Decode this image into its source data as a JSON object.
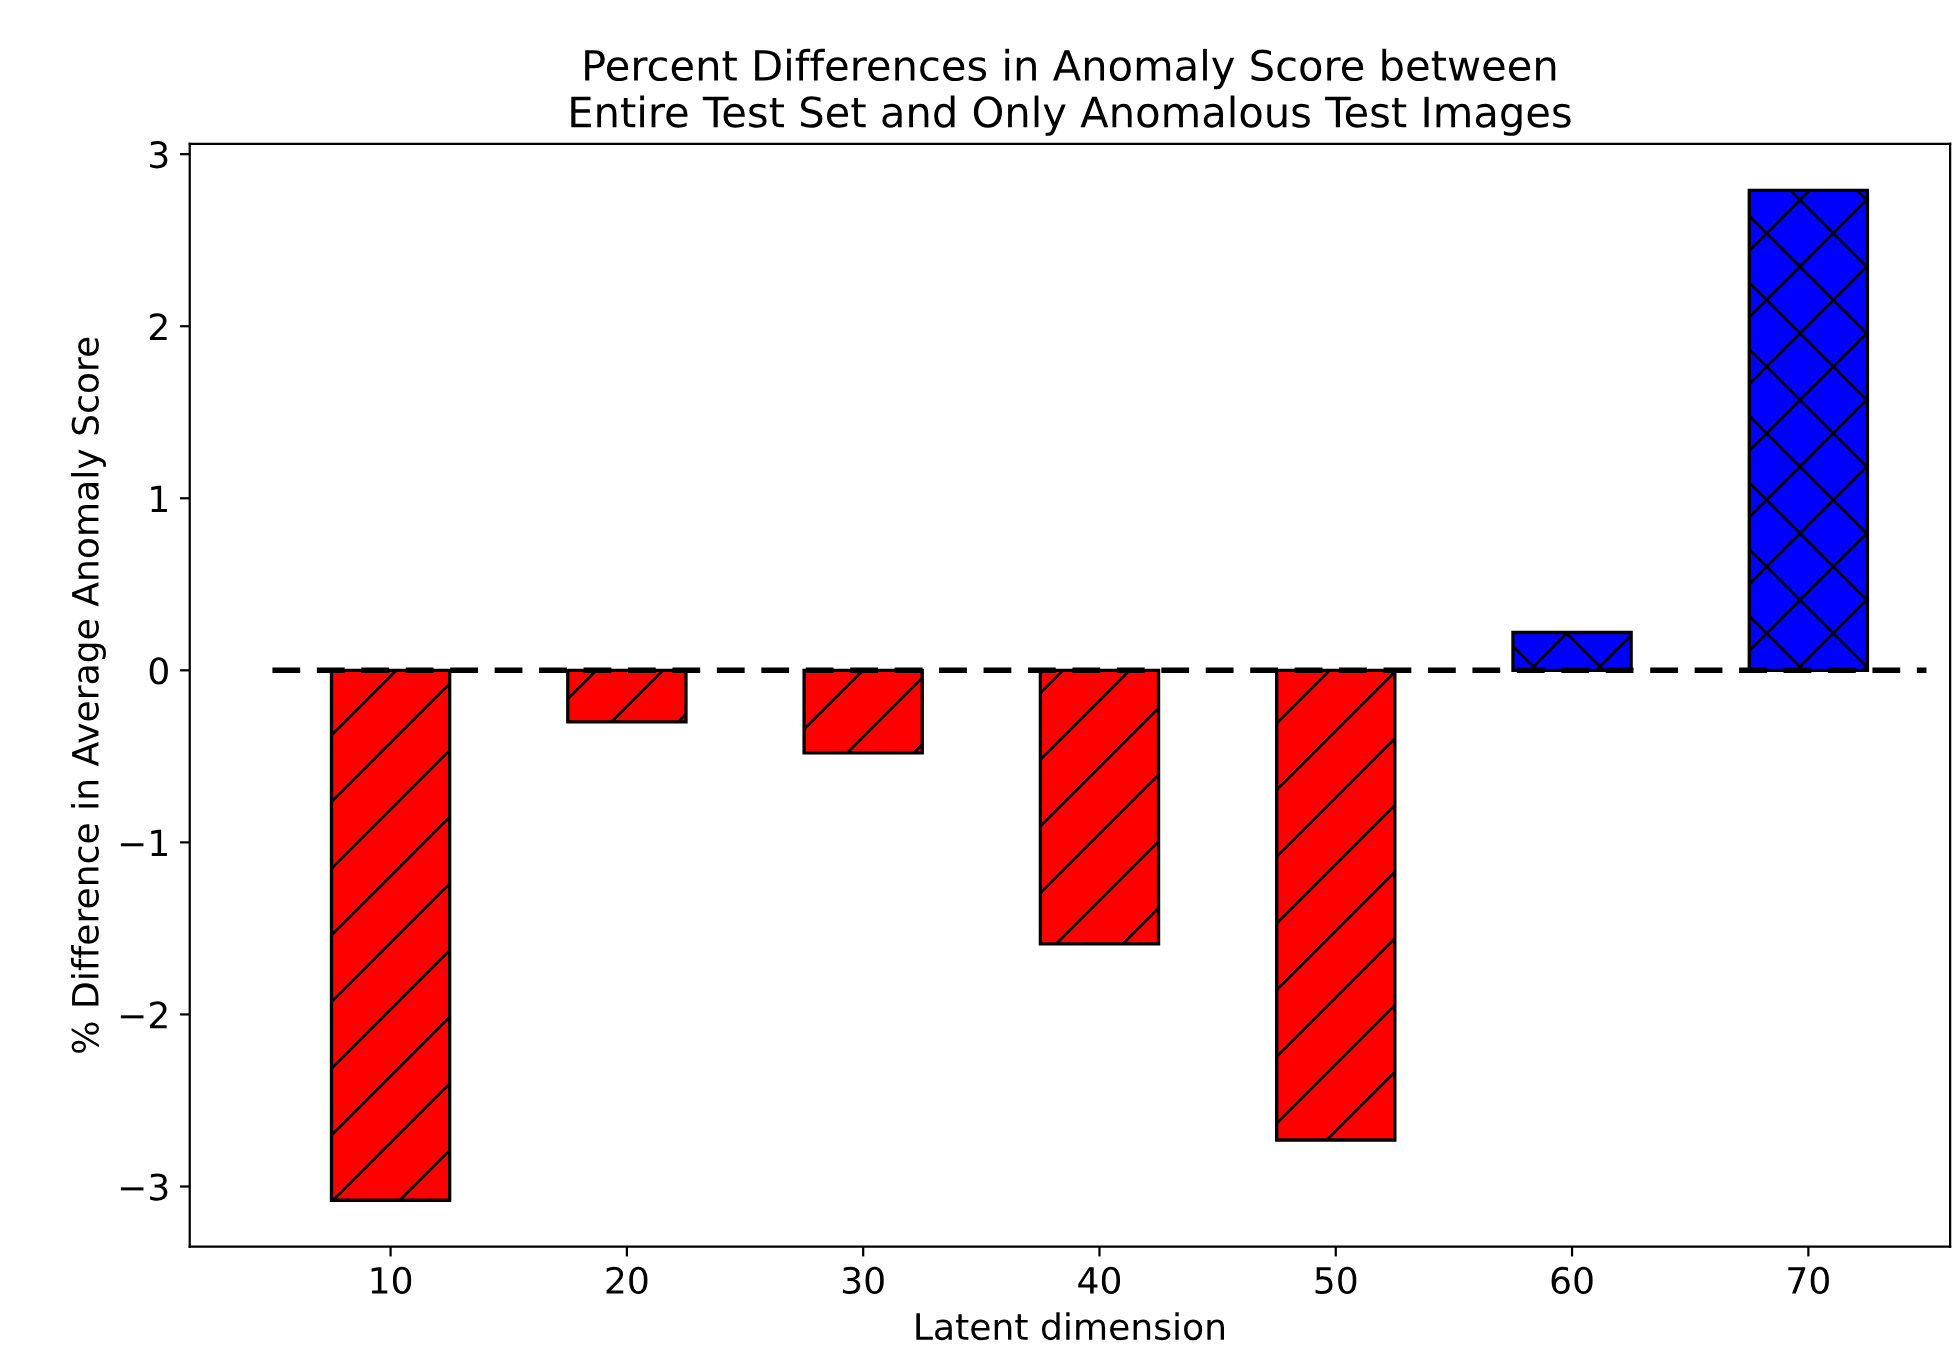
{
  "chart_data": {
    "type": "bar",
    "title": "Percent Differences in Anomaly Score between\nEntire Test Set and Only Anomalous Test Images",
    "xlabel": "Latent dimension",
    "ylabel": "% Difference in Average Anomaly Score",
    "x": [
      10,
      20,
      30,
      40,
      50,
      60,
      70
    ],
    "values": [
      -3.08,
      -0.3,
      -0.48,
      -1.59,
      -2.73,
      0.22,
      2.79
    ],
    "colors": [
      "#ff0000",
      "#ff0000",
      "#ff0000",
      "#ff0000",
      "#ff0000",
      "#0000ff",
      "#0000ff"
    ],
    "xlim": [
      1.5,
      76
    ],
    "xticks": [
      10,
      20,
      30,
      40,
      50,
      60,
      70
    ],
    "ylim": [
      -3.35,
      3.06
    ],
    "yticks": [
      {
        "value": -3,
        "label": "−3"
      },
      {
        "value": -2,
        "label": "−2"
      },
      {
        "value": -1,
        "label": "−1"
      },
      0,
      1,
      2,
      3
    ],
    "ref_lines": [
      {
        "axis": "y",
        "value": 0,
        "color": "#000000",
        "line_style": "dashed"
      }
    ],
    "grid": false,
    "legend": false
  }
}
